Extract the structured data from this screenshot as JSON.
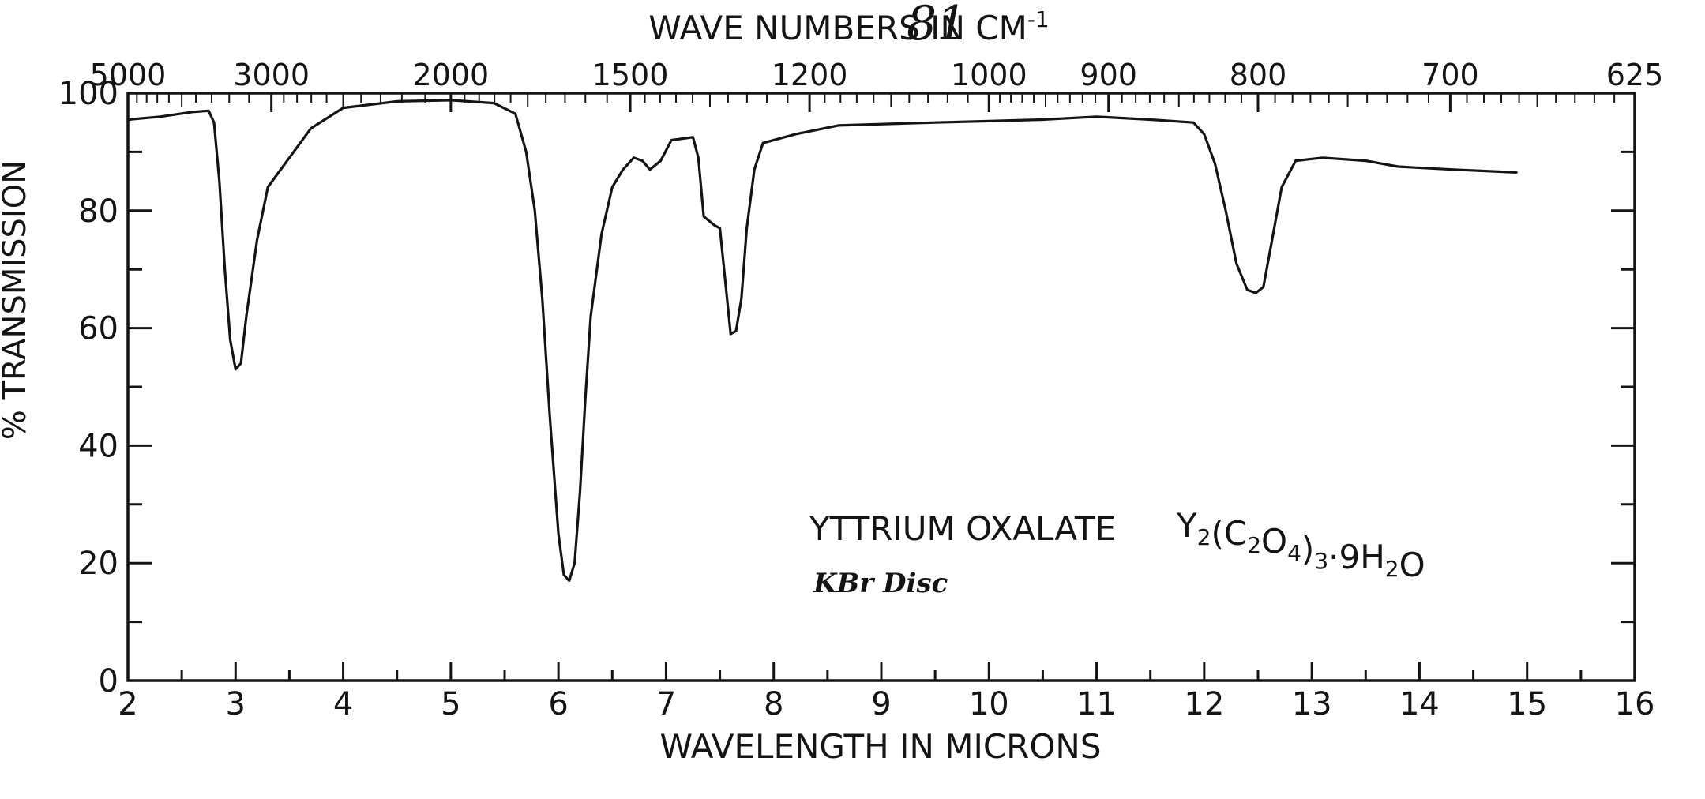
{
  "page_number": "81",
  "chart_data": {
    "type": "line",
    "top_axis_title": "WAVE NUMBERS IN CM",
    "top_axis_title_sup": "-1",
    "xlabel": "WAVELENGTH IN MICRONS",
    "ylabel": "% TRANSMISSION",
    "xlim": [
      2,
      16
    ],
    "ylim": [
      0,
      100
    ],
    "x_ticks": [
      "2",
      "3",
      "4",
      "5",
      "6",
      "7",
      "8",
      "9",
      "10",
      "11",
      "12",
      "13",
      "14",
      "15",
      "16"
    ],
    "y_ticks": [
      "0",
      "20",
      "40",
      "60",
      "80",
      "100"
    ],
    "top_ticks": [
      {
        "label": "5000",
        "micron": 2.0
      },
      {
        "label": "3000",
        "micron": 3.333
      },
      {
        "label": "2000",
        "micron": 5.0
      },
      {
        "label": "1500",
        "micron": 6.667
      },
      {
        "label": "1200",
        "micron": 8.333
      },
      {
        "label": "1000",
        "micron": 10.0
      },
      {
        "label": "900",
        "micron": 11.111
      },
      {
        "label": "800",
        "micron": 12.5
      },
      {
        "label": "700",
        "micron": 14.286
      },
      {
        "label": "625",
        "micron": 16.0
      }
    ],
    "grid": false,
    "annotation": {
      "compound_name": "YTTRIUM OXALATE",
      "formula": {
        "parts": [
          {
            "t": "Y",
            "sub": false
          },
          {
            "t": "2",
            "sub": true
          },
          {
            "t": "(C",
            "sub": false
          },
          {
            "t": "2",
            "sub": true
          },
          {
            "t": "O",
            "sub": false
          },
          {
            "t": "4",
            "sub": true
          },
          {
            "t": ")",
            "sub": false
          },
          {
            "t": "3",
            "sub": true
          },
          {
            "t": "·9H",
            "sub": false
          },
          {
            "t": "2",
            "sub": true
          },
          {
            "t": "O",
            "sub": false
          }
        ]
      },
      "sample_prep": "KBr Disc"
    },
    "series": [
      {
        "color": "#141414",
        "points": [
          [
            2.0,
            95.5
          ],
          [
            2.3,
            96.0
          ],
          [
            2.6,
            96.8
          ],
          [
            2.75,
            97.0
          ],
          [
            2.8,
            95.0
          ],
          [
            2.85,
            85.0
          ],
          [
            2.9,
            70.0
          ],
          [
            2.95,
            58.0
          ],
          [
            3.0,
            53.0
          ],
          [
            3.05,
            54.0
          ],
          [
            3.1,
            62.0
          ],
          [
            3.2,
            75.0
          ],
          [
            3.3,
            84.0
          ],
          [
            3.5,
            89.0
          ],
          [
            3.7,
            94.0
          ],
          [
            4.0,
            97.5
          ],
          [
            4.5,
            98.6
          ],
          [
            5.0,
            98.8
          ],
          [
            5.4,
            98.3
          ],
          [
            5.6,
            96.5
          ],
          [
            5.7,
            90.0
          ],
          [
            5.78,
            80.0
          ],
          [
            5.85,
            65.0
          ],
          [
            5.92,
            45.0
          ],
          [
            6.0,
            25.0
          ],
          [
            6.05,
            18.0
          ],
          [
            6.1,
            17.0
          ],
          [
            6.15,
            20.0
          ],
          [
            6.2,
            32.0
          ],
          [
            6.25,
            48.0
          ],
          [
            6.3,
            62.0
          ],
          [
            6.4,
            76.0
          ],
          [
            6.5,
            84.0
          ],
          [
            6.6,
            87.0
          ],
          [
            6.7,
            89.0
          ],
          [
            6.78,
            88.5
          ],
          [
            6.85,
            87.0
          ],
          [
            6.95,
            88.5
          ],
          [
            7.05,
            92.0
          ],
          [
            7.25,
            92.5
          ],
          [
            7.3,
            89.0
          ],
          [
            7.35,
            79.0
          ],
          [
            7.45,
            77.5
          ],
          [
            7.5,
            77.0
          ],
          [
            7.55,
            68.0
          ],
          [
            7.6,
            59.0
          ],
          [
            7.65,
            59.5
          ],
          [
            7.7,
            65.0
          ],
          [
            7.75,
            77.0
          ],
          [
            7.82,
            87.0
          ],
          [
            7.9,
            91.5
          ],
          [
            8.2,
            93.0
          ],
          [
            8.6,
            94.5
          ],
          [
            9.5,
            95.0
          ],
          [
            10.5,
            95.5
          ],
          [
            11.0,
            96.0
          ],
          [
            11.5,
            95.5
          ],
          [
            11.9,
            95.0
          ],
          [
            12.0,
            93.0
          ],
          [
            12.1,
            88.0
          ],
          [
            12.2,
            80.0
          ],
          [
            12.3,
            71.0
          ],
          [
            12.4,
            66.5
          ],
          [
            12.48,
            66.0
          ],
          [
            12.55,
            67.0
          ],
          [
            12.62,
            74.0
          ],
          [
            12.72,
            84.0
          ],
          [
            12.85,
            88.5
          ],
          [
            13.1,
            89.0
          ],
          [
            13.5,
            88.5
          ],
          [
            13.8,
            87.5
          ],
          [
            14.3,
            87.0
          ],
          [
            14.9,
            86.5
          ]
        ]
      }
    ]
  }
}
